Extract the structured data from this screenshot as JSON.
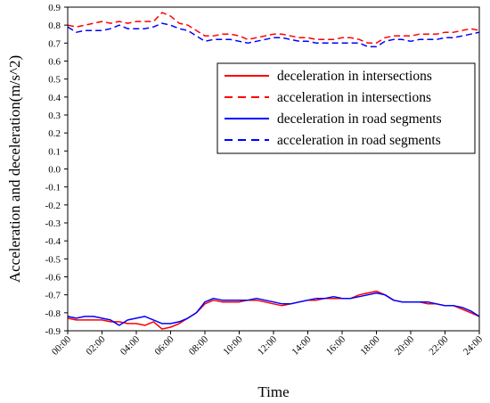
{
  "chart_data": {
    "type": "line",
    "title": "",
    "xlabel": "Time",
    "ylabel": "Acceleration and deceleration(m/s^2)",
    "xlim": [
      0,
      24
    ],
    "ylim": [
      -0.9,
      0.9
    ],
    "x_tick_values": [
      0,
      2,
      4,
      6,
      8,
      10,
      12,
      14,
      16,
      18,
      20,
      22,
      24
    ],
    "x_tick_labels": [
      "00:00",
      "02:00",
      "04:00",
      "06:00",
      "08:00",
      "10:00",
      "12:00",
      "14:00",
      "16:00",
      "18:00",
      "20:00",
      "22:00",
      "24:00"
    ],
    "y_tick_values": [
      0.9,
      0.8,
      0.7,
      0.6,
      0.5,
      0.4,
      0.3,
      0.2,
      0.1,
      0.0,
      -0.1,
      -0.2,
      -0.3,
      -0.4,
      -0.5,
      -0.6,
      -0.7,
      -0.8,
      -0.9
    ],
    "y_tick_labels": [
      "0.9",
      "0.8",
      "0.7",
      "0.6",
      "0.5",
      "0.4",
      "0.3",
      "0.2",
      "0.1",
      "0.0",
      "-0.1",
      "-0.2",
      "-0.3",
      "-0.4",
      "-0.5",
      "-0.6",
      "-0.7",
      "-0.8",
      "-0.9"
    ],
    "legend_position": "top-right",
    "grid": false,
    "series": [
      {
        "name": "deceleration in intersections",
        "color": "#ff0000",
        "dash": "solid",
        "x": [
          0,
          0.5,
          1,
          1.5,
          2,
          2.5,
          3,
          3.5,
          4,
          4.5,
          5,
          5.5,
          6,
          6.5,
          7,
          7.5,
          8,
          8.5,
          9,
          9.5,
          10,
          10.5,
          11,
          11.5,
          12,
          12.5,
          13,
          13.5,
          14,
          14.5,
          15,
          15.5,
          16,
          16.5,
          17,
          17.5,
          18,
          18.5,
          19,
          19.5,
          20,
          20.5,
          21,
          21.5,
          22,
          22.5,
          23,
          23.5,
          24
        ],
        "y": [
          -0.83,
          -0.84,
          -0.84,
          -0.84,
          -0.84,
          -0.85,
          -0.85,
          -0.86,
          -0.86,
          -0.87,
          -0.85,
          -0.89,
          -0.88,
          -0.86,
          -0.83,
          -0.8,
          -0.75,
          -0.73,
          -0.74,
          -0.74,
          -0.74,
          -0.73,
          -0.73,
          -0.74,
          -0.75,
          -0.76,
          -0.75,
          -0.74,
          -0.73,
          -0.73,
          -0.72,
          -0.72,
          -0.72,
          -0.72,
          -0.7,
          -0.69,
          -0.68,
          -0.7,
          -0.73,
          -0.74,
          -0.74,
          -0.74,
          -0.75,
          -0.75,
          -0.76,
          -0.76,
          -0.78,
          -0.8,
          -0.82
        ]
      },
      {
        "name": "acceleration in intersections",
        "color": "#ff0000",
        "dash": "dashed",
        "x": [
          0,
          0.5,
          1,
          1.5,
          2,
          2.5,
          3,
          3.5,
          4,
          4.5,
          5,
          5.5,
          6,
          6.5,
          7,
          7.5,
          8,
          8.5,
          9,
          9.5,
          10,
          10.5,
          11,
          11.5,
          12,
          12.5,
          13,
          13.5,
          14,
          14.5,
          15,
          15.5,
          16,
          16.5,
          17,
          17.5,
          18,
          18.5,
          19,
          19.5,
          20,
          20.5,
          21,
          21.5,
          22,
          22.5,
          23,
          23.5,
          24
        ],
        "y": [
          0.8,
          0.79,
          0.8,
          0.81,
          0.82,
          0.81,
          0.82,
          0.81,
          0.82,
          0.82,
          0.82,
          0.87,
          0.85,
          0.81,
          0.8,
          0.77,
          0.74,
          0.74,
          0.75,
          0.75,
          0.74,
          0.72,
          0.73,
          0.74,
          0.75,
          0.75,
          0.74,
          0.73,
          0.73,
          0.72,
          0.72,
          0.72,
          0.73,
          0.73,
          0.72,
          0.7,
          0.7,
          0.73,
          0.74,
          0.74,
          0.74,
          0.75,
          0.75,
          0.75,
          0.76,
          0.76,
          0.77,
          0.78,
          0.77
        ]
      },
      {
        "name": "deceleration in road segments",
        "color": "#0000ff",
        "dash": "solid",
        "x": [
          0,
          0.5,
          1,
          1.5,
          2,
          2.5,
          3,
          3.5,
          4,
          4.5,
          5,
          5.5,
          6,
          6.5,
          7,
          7.5,
          8,
          8.5,
          9,
          9.5,
          10,
          10.5,
          11,
          11.5,
          12,
          12.5,
          13,
          13.5,
          14,
          14.5,
          15,
          15.5,
          16,
          16.5,
          17,
          17.5,
          18,
          18.5,
          19,
          19.5,
          20,
          20.5,
          21,
          21.5,
          22,
          22.5,
          23,
          23.5,
          24
        ],
        "y": [
          -0.82,
          -0.83,
          -0.82,
          -0.82,
          -0.83,
          -0.84,
          -0.87,
          -0.84,
          -0.83,
          -0.82,
          -0.84,
          -0.86,
          -0.86,
          -0.85,
          -0.83,
          -0.8,
          -0.74,
          -0.72,
          -0.73,
          -0.73,
          -0.73,
          -0.73,
          -0.72,
          -0.73,
          -0.74,
          -0.75,
          -0.75,
          -0.74,
          -0.73,
          -0.72,
          -0.72,
          -0.71,
          -0.72,
          -0.72,
          -0.71,
          -0.7,
          -0.69,
          -0.7,
          -0.73,
          -0.74,
          -0.74,
          -0.74,
          -0.74,
          -0.75,
          -0.76,
          -0.76,
          -0.77,
          -0.79,
          -0.82
        ]
      },
      {
        "name": "acceleration in road segments",
        "color": "#0000ff",
        "dash": "dashed",
        "x": [
          0,
          0.5,
          1,
          1.5,
          2,
          2.5,
          3,
          3.5,
          4,
          4.5,
          5,
          5.5,
          6,
          6.5,
          7,
          7.5,
          8,
          8.5,
          9,
          9.5,
          10,
          10.5,
          11,
          11.5,
          12,
          12.5,
          13,
          13.5,
          14,
          14.5,
          15,
          15.5,
          16,
          16.5,
          17,
          17.5,
          18,
          18.5,
          19,
          19.5,
          20,
          20.5,
          21,
          21.5,
          22,
          22.5,
          23,
          23.5,
          24
        ],
        "y": [
          0.79,
          0.76,
          0.77,
          0.77,
          0.77,
          0.78,
          0.8,
          0.78,
          0.78,
          0.78,
          0.79,
          0.81,
          0.8,
          0.78,
          0.77,
          0.74,
          0.71,
          0.72,
          0.72,
          0.72,
          0.71,
          0.7,
          0.71,
          0.72,
          0.73,
          0.73,
          0.72,
          0.71,
          0.71,
          0.7,
          0.7,
          0.7,
          0.7,
          0.7,
          0.7,
          0.68,
          0.68,
          0.71,
          0.72,
          0.72,
          0.71,
          0.72,
          0.72,
          0.72,
          0.73,
          0.73,
          0.74,
          0.75,
          0.76
        ]
      }
    ]
  }
}
